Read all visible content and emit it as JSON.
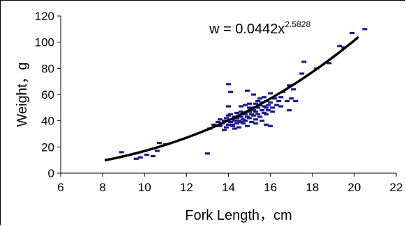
{
  "chart_data": {
    "type": "scatter",
    "xlabel": "Fork Length，cm",
    "ylabel": "Weight，g",
    "xlim": [
      6,
      22
    ],
    "ylim": [
      0,
      120
    ],
    "xticks": [
      6,
      8,
      10,
      12,
      14,
      16,
      18,
      20,
      22
    ],
    "yticks": [
      0,
      20,
      40,
      60,
      80,
      100,
      120
    ],
    "grid": false,
    "legend": "none",
    "marker_color": "#1a1a8c",
    "trend_color": "#000000",
    "trendline": {
      "type": "power",
      "coefficient": 0.0442,
      "exponent": 2.5828,
      "x_range": [
        8.1,
        20.2
      ],
      "equation_base": "w = 0.0442x",
      "equation_exponent": "2.5828"
    },
    "points": [
      [
        8.9,
        16
      ],
      [
        9.6,
        11
      ],
      [
        9.8,
        12
      ],
      [
        10.1,
        14
      ],
      [
        10.4,
        13
      ],
      [
        10.6,
        17
      ],
      [
        10.7,
        23
      ],
      [
        11.0,
        22
      ],
      [
        13.0,
        15
      ],
      [
        13.1,
        34
      ],
      [
        13.3,
        37
      ],
      [
        13.4,
        36
      ],
      [
        13.5,
        39
      ],
      [
        13.6,
        36
      ],
      [
        13.6,
        41
      ],
      [
        13.7,
        38
      ],
      [
        13.8,
        33
      ],
      [
        13.8,
        40
      ],
      [
        13.9,
        42
      ],
      [
        13.9,
        35
      ],
      [
        14.0,
        37
      ],
      [
        14.0,
        44
      ],
      [
        14.0,
        68
      ],
      [
        14.1,
        39
      ],
      [
        14.1,
        45
      ],
      [
        14.1,
        62
      ],
      [
        14.2,
        37
      ],
      [
        14.2,
        41
      ],
      [
        14.2,
        36
      ],
      [
        14.3,
        40
      ],
      [
        14.3,
        43
      ],
      [
        14.3,
        34
      ],
      [
        14.4,
        38
      ],
      [
        14.4,
        46
      ],
      [
        14.4,
        42
      ],
      [
        14.5,
        40
      ],
      [
        14.5,
        44
      ],
      [
        14.5,
        35
      ],
      [
        14.6,
        39
      ],
      [
        14.6,
        43
      ],
      [
        14.6,
        47
      ],
      [
        14.7,
        41
      ],
      [
        14.7,
        38
      ],
      [
        14.8,
        45
      ],
      [
        14.8,
        52
      ],
      [
        14.8,
        40
      ],
      [
        14.9,
        43
      ],
      [
        14.9,
        36
      ],
      [
        14.9,
        63
      ],
      [
        15.0,
        47
      ],
      [
        15.0,
        42
      ],
      [
        15.0,
        53
      ],
      [
        15.1,
        39
      ],
      [
        15.1,
        45
      ],
      [
        15.1,
        50
      ],
      [
        15.2,
        44
      ],
      [
        15.2,
        48
      ],
      [
        15.2,
        60
      ],
      [
        15.3,
        41
      ],
      [
        15.3,
        53
      ],
      [
        15.3,
        47
      ],
      [
        15.4,
        45
      ],
      [
        15.4,
        50
      ],
      [
        15.4,
        55
      ],
      [
        15.5,
        43
      ],
      [
        15.5,
        52
      ],
      [
        15.5,
        57
      ],
      [
        15.6,
        48
      ],
      [
        15.6,
        54
      ],
      [
        15.6,
        40
      ],
      [
        15.7,
        51
      ],
      [
        15.7,
        46
      ],
      [
        15.7,
        58
      ],
      [
        15.8,
        50
      ],
      [
        15.8,
        55
      ],
      [
        15.8,
        37
      ],
      [
        15.9,
        48
      ],
      [
        15.9,
        52
      ],
      [
        16.0,
        36
      ],
      [
        16.0,
        54
      ],
      [
        16.0,
        61
      ],
      [
        16.1,
        47
      ],
      [
        16.1,
        50
      ],
      [
        16.2,
        57
      ],
      [
        16.3,
        52
      ],
      [
        16.4,
        55
      ],
      [
        16.5,
        58
      ],
      [
        16.5,
        51
      ],
      [
        16.6,
        62
      ],
      [
        16.8,
        55
      ],
      [
        16.9,
        48
      ],
      [
        16.9,
        67
      ],
      [
        17.0,
        57
      ],
      [
        17.1,
        64
      ],
      [
        17.2,
        55
      ],
      [
        17.5,
        76
      ],
      [
        17.6,
        85
      ],
      [
        18.2,
        80
      ],
      [
        18.8,
        84
      ],
      [
        19.3,
        97
      ],
      [
        19.5,
        96
      ],
      [
        19.9,
        107
      ],
      [
        20.5,
        110
      ],
      [
        15.0,
        50
      ],
      [
        14.6,
        51
      ],
      [
        15.3,
        38
      ],
      [
        14.0,
        51
      ],
      [
        15.8,
        45
      ]
    ]
  }
}
